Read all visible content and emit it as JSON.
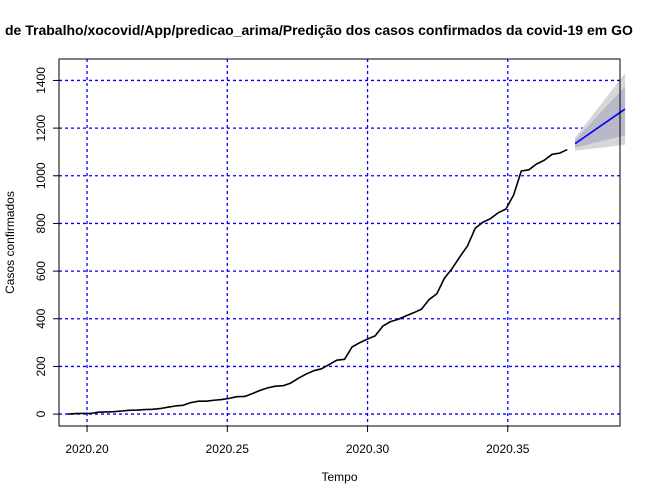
{
  "chart_data": {
    "type": "line",
    "title": "de Trabalho/xocovid/App/predicao_arima/Predição dos casos confirmados da covid-19 em GO",
    "xlabel": "Tempo",
    "ylabel": "Casos confirmados",
    "xlim": [
      2020.19,
      2020.39
    ],
    "ylim": [
      -50,
      1490
    ],
    "x_ticks": [
      2020.2,
      2020.25,
      2020.3,
      2020.35
    ],
    "x_tick_labels": [
      "2020.20",
      "2020.25",
      "2020.30",
      "2020.35"
    ],
    "y_ticks": [
      0,
      200,
      400,
      600,
      800,
      1000,
      1200,
      1400
    ],
    "y_tick_labels": [
      "0",
      "200",
      "400",
      "600",
      "800",
      "1000",
      "1200",
      "1400"
    ],
    "grid": true,
    "grid_color": "#0000ff",
    "series": [
      {
        "color": "#000000",
        "points": [
          [
            2020.1932,
            0
          ],
          [
            2020.1959,
            2
          ],
          [
            2020.1986,
            3
          ],
          [
            2020.2014,
            3
          ],
          [
            2020.2041,
            8
          ],
          [
            2020.2068,
            9
          ],
          [
            2020.2096,
            10
          ],
          [
            2020.2123,
            13
          ],
          [
            2020.2151,
            16
          ],
          [
            2020.2178,
            17
          ],
          [
            2020.2205,
            19
          ],
          [
            2020.2233,
            20
          ],
          [
            2020.226,
            23
          ],
          [
            2020.2288,
            29
          ],
          [
            2020.2315,
            34
          ],
          [
            2020.2342,
            37
          ],
          [
            2020.237,
            48
          ],
          [
            2020.2397,
            54
          ],
          [
            2020.2425,
            54
          ],
          [
            2020.2452,
            58
          ],
          [
            2020.2479,
            61
          ],
          [
            2020.2507,
            66
          ],
          [
            2020.2534,
            73
          ],
          [
            2020.2562,
            74
          ],
          [
            2020.2589,
            86
          ],
          [
            2020.2616,
            99
          ],
          [
            2020.2644,
            110
          ],
          [
            2020.2671,
            117
          ],
          [
            2020.2699,
            119
          ],
          [
            2020.2726,
            130
          ],
          [
            2020.2753,
            150
          ],
          [
            2020.2781,
            168
          ],
          [
            2020.2808,
            182
          ],
          [
            2020.2836,
            190
          ],
          [
            2020.2863,
            208
          ],
          [
            2020.289,
            226
          ],
          [
            2020.2918,
            230
          ],
          [
            2020.2945,
            282
          ],
          [
            2020.2973,
            300
          ],
          [
            2020.3,
            315
          ],
          [
            2020.3027,
            328
          ],
          [
            2020.3055,
            370
          ],
          [
            2020.3082,
            388
          ],
          [
            2020.311,
            398
          ],
          [
            2020.3137,
            412
          ],
          [
            2020.3164,
            425
          ],
          [
            2020.3192,
            440
          ],
          [
            2020.3219,
            480
          ],
          [
            2020.3247,
            505
          ],
          [
            2020.3274,
            570
          ],
          [
            2020.3301,
            610
          ],
          [
            2020.3329,
            660
          ],
          [
            2020.3356,
            705
          ],
          [
            2020.3384,
            780
          ],
          [
            2020.3411,
            805
          ],
          [
            2020.3438,
            820
          ],
          [
            2020.3466,
            845
          ],
          [
            2020.3493,
            860
          ],
          [
            2020.3521,
            920
          ],
          [
            2020.3548,
            1020
          ],
          [
            2020.3575,
            1025
          ],
          [
            2020.3603,
            1050
          ],
          [
            2020.363,
            1065
          ],
          [
            2020.3658,
            1090
          ],
          [
            2020.3685,
            1095
          ],
          [
            2020.3712,
            1110
          ]
        ]
      },
      {
        "color": "#0000ff",
        "points": [
          [
            2020.374,
            1135
          ],
          [
            2020.3918,
            1280
          ]
        ]
      }
    ],
    "forecast_bands": [
      {
        "level": "95",
        "color": "#d6d6d9",
        "x": [
          2020.374,
          2020.3918
        ],
        "lower": [
          1105,
          1130
        ],
        "upper": [
          1160,
          1430
        ]
      },
      {
        "level": "80",
        "color": "#b8b8c8",
        "x": [
          2020.374,
          2020.3918
        ],
        "lower": [
          1118,
          1170
        ],
        "upper": [
          1150,
          1375
        ]
      }
    ]
  }
}
